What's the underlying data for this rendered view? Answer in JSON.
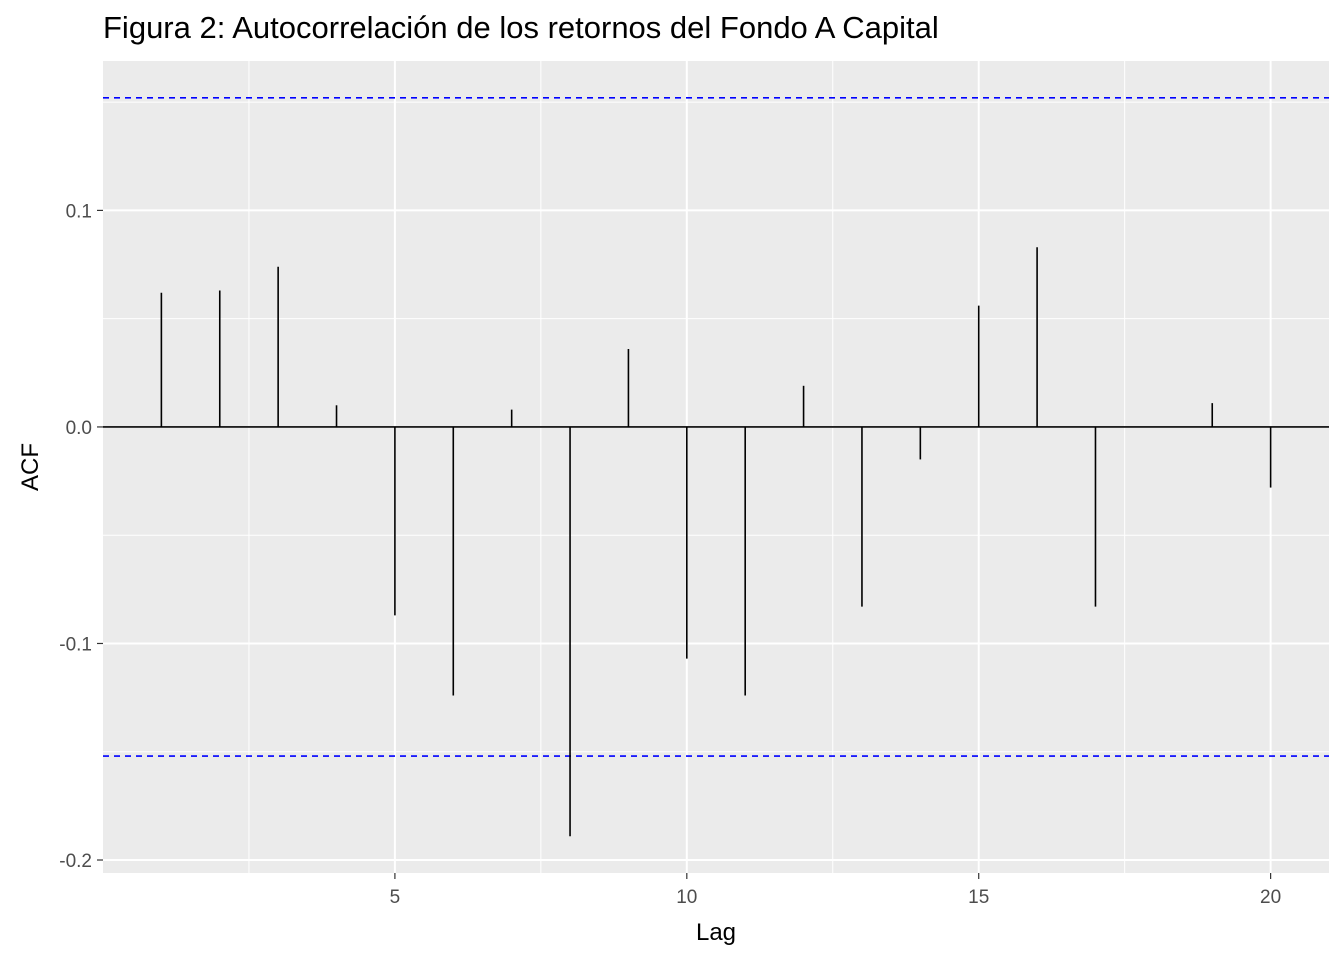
{
  "chart_data": {
    "type": "bar",
    "title": "Figura 2: Autocorrelación de los retornos del Fondo A Capital",
    "xlabel": "Lag",
    "ylabel": "ACF",
    "xlim": [
      0,
      21
    ],
    "ylim": [
      -0.206,
      0.169
    ],
    "x_ticks": [
      5,
      10,
      15,
      20
    ],
    "y_ticks": [
      -0.2,
      -0.1,
      0.0,
      0.1
    ],
    "y_tick_labels": [
      "-0.2",
      "-0.1",
      "0.0",
      "0.1"
    ],
    "grid": true,
    "confidence_bounds": [
      0.152,
      -0.152
    ],
    "lags": [
      1,
      2,
      3,
      4,
      5,
      6,
      7,
      8,
      9,
      10,
      11,
      12,
      13,
      14,
      15,
      16,
      17,
      18,
      19,
      20
    ],
    "acf": [
      0.062,
      0.063,
      0.074,
      0.01,
      -0.087,
      -0.124,
      0.008,
      -0.189,
      0.036,
      -0.107,
      -0.124,
      0.019,
      -0.083,
      -0.015,
      0.056,
      0.083,
      -0.083,
      0.0,
      0.011,
      -0.028
    ],
    "colors": {
      "panel": "#EBEBEB",
      "grid": "#FFFFFF",
      "bars": "#000000",
      "bounds": "#0000FF"
    }
  }
}
